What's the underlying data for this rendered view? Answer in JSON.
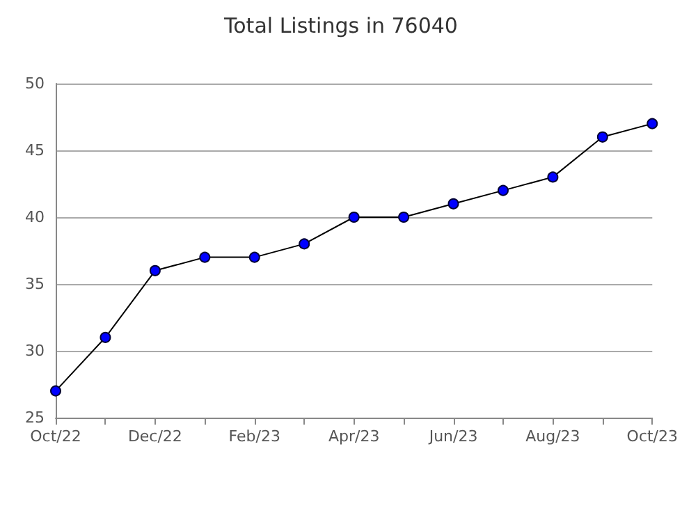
{
  "chart_data": {
    "type": "line",
    "title": "Total Listings in 76040",
    "categories": [
      "Oct/22",
      null,
      "Dec/22",
      null,
      "Feb/23",
      null,
      "Apr/23",
      null,
      "Jun/23",
      null,
      "Aug/23",
      null,
      "Oct/23"
    ],
    "series": [
      {
        "color": "#0000ff",
        "values": [
          27,
          31,
          36,
          37,
          37,
          38,
          40,
          40,
          41,
          42,
          43,
          46,
          47
        ]
      }
    ],
    "ylim": [
      25,
      50
    ],
    "yticks": [
      25,
      30,
      35,
      40,
      45,
      50
    ],
    "grid": "y",
    "marker": "circle",
    "line_style": "solid"
  }
}
